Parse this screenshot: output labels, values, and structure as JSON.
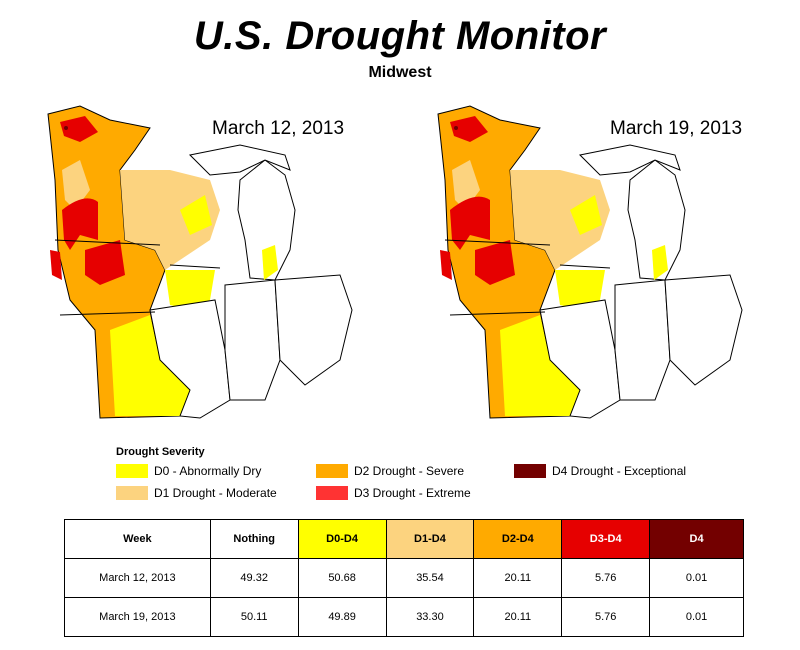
{
  "header": {
    "title": "U.S. Drought Monitor",
    "subtitle": "Midwest"
  },
  "maps": [
    {
      "date": "March 12, 2013"
    },
    {
      "date": "March 19, 2013"
    }
  ],
  "legend": {
    "title": "Drought Severity",
    "items": [
      {
        "label": "D0 - Abnormally Dry",
        "color": "#ffff00"
      },
      {
        "label": "D1 Drought - Moderate",
        "color": "#fcd37f"
      },
      {
        "label": "D2 Drought - Severe",
        "color": "#ffaa00"
      },
      {
        "label": "D3 Drought - Extreme",
        "color": "#ff3333"
      },
      {
        "label": "D4 Drought - Exceptional",
        "color": "#730000"
      }
    ]
  },
  "colors": {
    "d0": "#ffff00",
    "d1": "#fcd37f",
    "d2": "#ffaa00",
    "d3": "#e60000",
    "d4": "#730000",
    "outline": "#000000",
    "land": "#ffffff"
  },
  "table": {
    "headers": [
      "Week",
      "Nothing",
      "D0-D4",
      "D1-D4",
      "D2-D4",
      "D3-D4",
      "D4"
    ],
    "header_colors": [
      "#ffffff",
      "#ffffff",
      "#ffff00",
      "#fcd37f",
      "#ffaa00",
      "#e60000",
      "#730000"
    ],
    "header_text_colors": [
      "#000000",
      "#000000",
      "#000000",
      "#000000",
      "#000000",
      "#ffffff",
      "#ffffff"
    ],
    "rows": [
      [
        "March 12, 2013",
        "49.32",
        "50.68",
        "35.54",
        "20.11",
        "5.76",
        "0.01"
      ],
      [
        "March 19, 2013",
        "50.11",
        "49.89",
        "33.30",
        "20.11",
        "5.76",
        "0.01"
      ]
    ]
  }
}
